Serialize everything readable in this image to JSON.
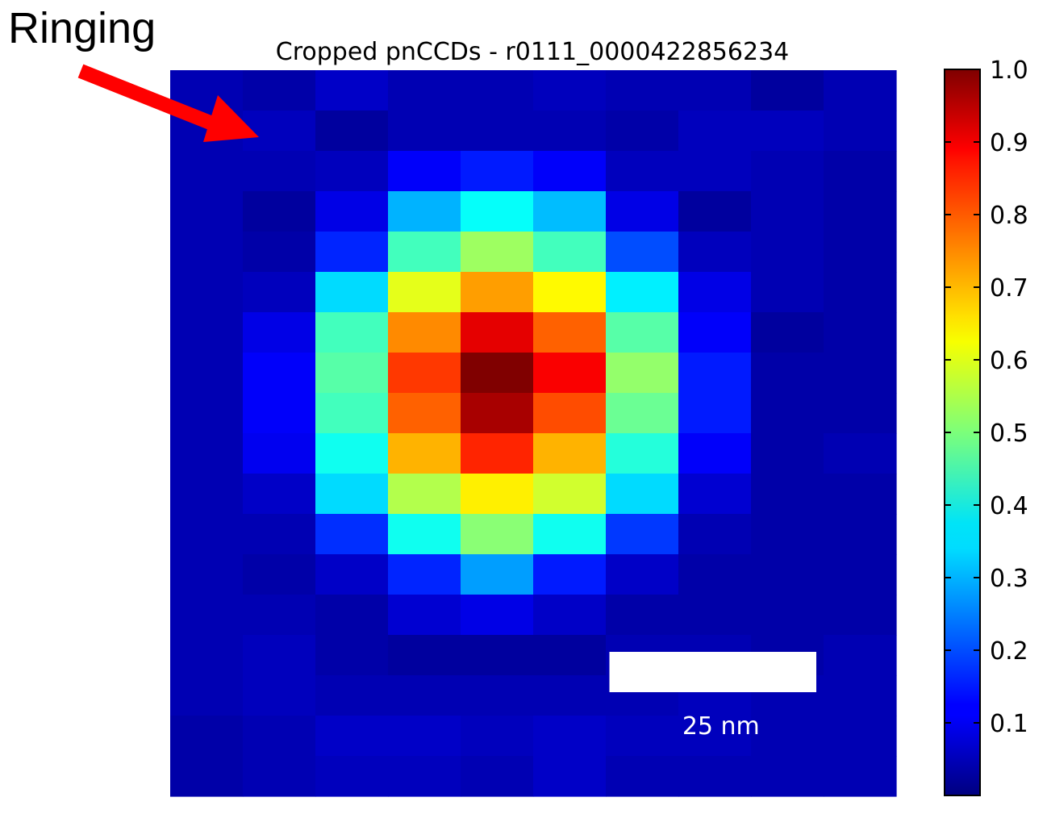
{
  "annotation": {
    "label": "Ringing",
    "arrow_color": "#ff0000"
  },
  "chart_data": {
    "type": "heatmap",
    "title": "Cropped pnCCDs - r0111_0000422856234",
    "colormap": "jet",
    "rows": 18,
    "cols": 10,
    "values": [
      [
        0.05,
        0.04,
        0.07,
        0.05,
        0.05,
        0.06,
        0.05,
        0.05,
        0.03,
        0.05
      ],
      [
        0.05,
        0.06,
        0.03,
        0.05,
        0.05,
        0.05,
        0.04,
        0.06,
        0.06,
        0.05
      ],
      [
        0.05,
        0.05,
        0.06,
        0.12,
        0.15,
        0.12,
        0.06,
        0.06,
        0.05,
        0.04
      ],
      [
        0.05,
        0.03,
        0.1,
        0.3,
        0.38,
        0.31,
        0.1,
        0.03,
        0.05,
        0.04
      ],
      [
        0.05,
        0.04,
        0.16,
        0.44,
        0.53,
        0.44,
        0.2,
        0.06,
        0.05,
        0.04
      ],
      [
        0.05,
        0.06,
        0.34,
        0.6,
        0.72,
        0.63,
        0.36,
        0.1,
        0.05,
        0.04
      ],
      [
        0.05,
        0.1,
        0.44,
        0.74,
        0.9,
        0.78,
        0.46,
        0.12,
        0.03,
        0.04
      ],
      [
        0.05,
        0.12,
        0.46,
        0.82,
        1.0,
        0.88,
        0.52,
        0.15,
        0.04,
        0.04
      ],
      [
        0.05,
        0.12,
        0.44,
        0.78,
        0.96,
        0.8,
        0.48,
        0.15,
        0.04,
        0.04
      ],
      [
        0.05,
        0.11,
        0.39,
        0.7,
        0.84,
        0.7,
        0.41,
        0.12,
        0.04,
        0.05
      ],
      [
        0.05,
        0.07,
        0.34,
        0.55,
        0.64,
        0.58,
        0.34,
        0.08,
        0.04,
        0.04
      ],
      [
        0.05,
        0.05,
        0.17,
        0.39,
        0.51,
        0.39,
        0.18,
        0.05,
        0.04,
        0.04
      ],
      [
        0.05,
        0.04,
        0.07,
        0.16,
        0.28,
        0.15,
        0.07,
        0.04,
        0.04,
        0.04
      ],
      [
        0.05,
        0.05,
        0.04,
        0.08,
        0.1,
        0.07,
        0.04,
        0.04,
        0.04,
        0.04
      ],
      [
        0.05,
        0.06,
        0.04,
        0.03,
        0.03,
        0.03,
        0.05,
        0.05,
        0.04,
        0.05
      ],
      [
        0.05,
        0.06,
        0.05,
        0.05,
        0.05,
        0.05,
        0.05,
        0.06,
        0.05,
        0.05
      ],
      [
        0.04,
        0.05,
        0.07,
        0.07,
        0.06,
        0.07,
        0.06,
        0.06,
        0.05,
        0.05
      ],
      [
        0.04,
        0.05,
        0.06,
        0.06,
        0.05,
        0.07,
        0.05,
        0.05,
        0.05,
        0.05
      ]
    ],
    "colorbar": {
      "range": [
        0.0,
        1.0
      ],
      "ticks": [
        0.1,
        0.2,
        0.3,
        0.4,
        0.5,
        0.6,
        0.7,
        0.8,
        0.9,
        1.0
      ],
      "tick_labels": [
        "0.1",
        "0.2",
        "0.3",
        "0.4",
        "0.5",
        "0.6",
        "0.7",
        "0.8",
        "0.9",
        "1.0"
      ]
    },
    "scalebar": {
      "label": "25 nm",
      "length_cols": 2.85,
      "color": "#ffffff"
    }
  }
}
